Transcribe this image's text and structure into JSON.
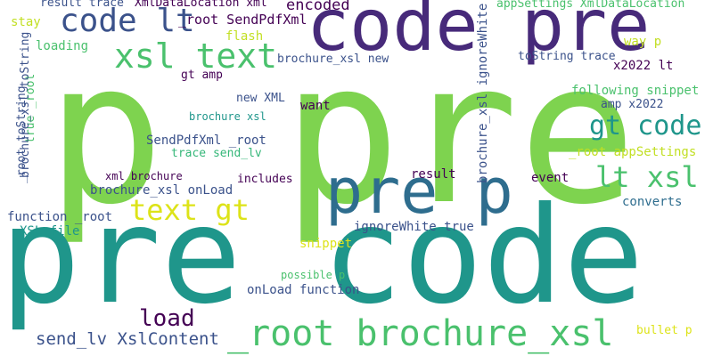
{
  "palette": {
    "light_green": "#7ed34f",
    "green": "#4ac16d",
    "teal": "#1f968b",
    "teal_blue": "#277f8e",
    "blue": "#2e6d8e",
    "slate": "#3b528b",
    "indigo": "#472a7a",
    "purple": "#440154",
    "yellow_green": "#c2df23",
    "yellow": "#dde318",
    "mint": "#35b779",
    "cyan": "#2a788e"
  },
  "words": [
    {
      "text": "p pre",
      "color": "light_green"
    },
    {
      "text": "pre code",
      "color": "teal"
    },
    {
      "text": "code pre",
      "color": "indigo"
    },
    {
      "text": "pre p",
      "color": "blue"
    },
    {
      "text": "_root brochure_xsl",
      "color": "green"
    },
    {
      "text": "xsl text",
      "color": "green"
    },
    {
      "text": "code lt",
      "color": "slate"
    },
    {
      "text": "text gt",
      "color": "yellow"
    },
    {
      "text": "lt xsl",
      "color": "green"
    },
    {
      "text": "gt code",
      "color": "teal"
    },
    {
      "text": "load",
      "color": "purple"
    },
    {
      "text": "send_lv XslContent",
      "color": "slate"
    },
    {
      "text": "encoded",
      "color": "purple"
    },
    {
      "text": "_root SendPdfXml",
      "color": "purple"
    },
    {
      "text": "result trace",
      "color": "slate"
    },
    {
      "text": "XmlDataLocation xml",
      "color": "purple"
    },
    {
      "text": "appSettings XmlDataLocation",
      "color": "green"
    },
    {
      "text": "stay",
      "color": "yellow_green"
    },
    {
      "text": "flash",
      "color": "yellow_green"
    },
    {
      "text": "loading",
      "color": "green"
    },
    {
      "text": "brochure_xsl new",
      "color": "slate"
    },
    {
      "text": "toString trace",
      "color": "slate"
    },
    {
      "text": "way p",
      "color": "yellow_green"
    },
    {
      "text": "x2022 lt",
      "color": "purple"
    },
    {
      "text": "gt amp",
      "color": "purple"
    },
    {
      "text": "new XML",
      "color": "slate"
    },
    {
      "text": "want",
      "color": "purple"
    },
    {
      "text": "brochure xsl",
      "color": "teal"
    },
    {
      "text": "following snippet",
      "color": "green"
    },
    {
      "text": "amp x2022",
      "color": "slate"
    },
    {
      "text": "SendPdfXml _root",
      "color": "slate"
    },
    {
      "text": "trace send_lv",
      "color": "mint"
    },
    {
      "text": "_root appSettings",
      "color": "yellow_green"
    },
    {
      "text": "xml brochure",
      "color": "purple"
    },
    {
      "text": "includes",
      "color": "purple"
    },
    {
      "text": "brochure_xsl onLoad",
      "color": "slate"
    },
    {
      "text": "result",
      "color": "purple"
    },
    {
      "text": "event",
      "color": "purple"
    },
    {
      "text": "function _root",
      "color": "slate"
    },
    {
      "text": "converts",
      "color": "blue"
    },
    {
      "text": "XSL file",
      "color": "teal"
    },
    {
      "text": "ignoreWhite true",
      "color": "slate"
    },
    {
      "text": "snippet",
      "color": "yellow"
    },
    {
      "text": "possible p",
      "color": "green"
    },
    {
      "text": "onLoad function",
      "color": "slate"
    },
    {
      "text": "bullet p",
      "color": "yellow"
    },
    {
      "text": "_root toString",
      "color": "slate"
    },
    {
      "text": "true _root",
      "color": "green"
    },
    {
      "text": "brochure_xsl toString",
      "color": "slate"
    },
    {
      "text": "brochure_xsl ignoreWhite",
      "color": "slate"
    }
  ]
}
